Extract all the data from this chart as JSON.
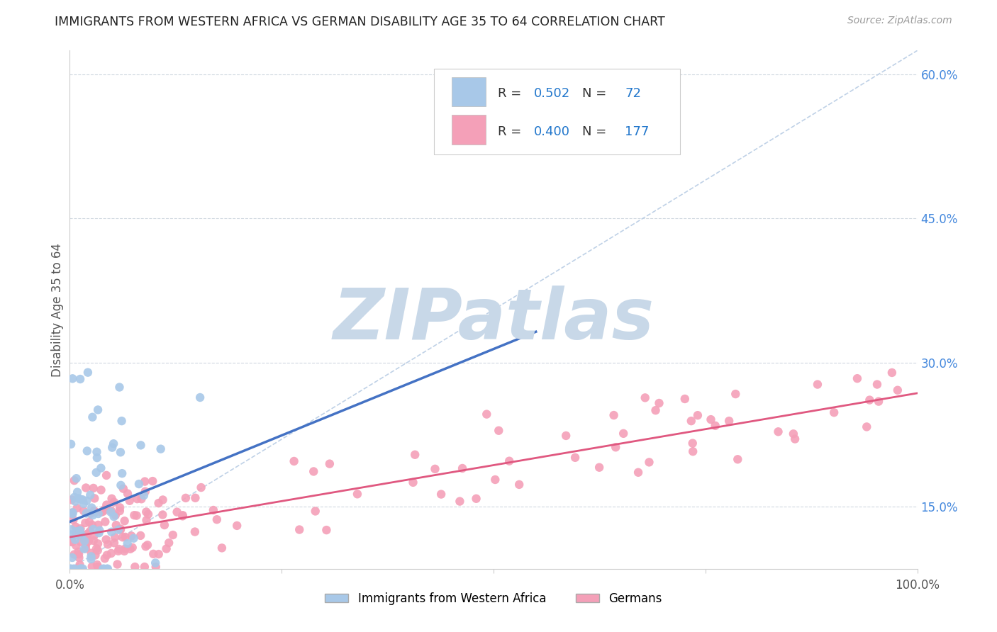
{
  "title": "IMMIGRANTS FROM WESTERN AFRICA VS GERMAN DISABILITY AGE 35 TO 64 CORRELATION CHART",
  "source": "Source: ZipAtlas.com",
  "ylabel": "Disability Age 35 to 64",
  "xlim": [
    0.0,
    1.0
  ],
  "ylim": [
    0.085,
    0.625
  ],
  "ytick_positions": [
    0.15,
    0.3,
    0.45,
    0.6
  ],
  "ytick_labels": [
    "15.0%",
    "30.0%",
    "45.0%",
    "60.0%"
  ],
  "blue_R": "0.502",
  "blue_N": "72",
  "pink_R": "0.400",
  "pink_N": "177",
  "blue_color": "#a8c8e8",
  "pink_color": "#f4a0b8",
  "blue_line_color": "#4472c4",
  "pink_line_color": "#e05880",
  "diagonal_line_color": "#b8cce4",
  "watermark_color": "#c8d8e8",
  "background_color": "#ffffff",
  "grid_color": "#d0d8e0",
  "blue_seed": 10,
  "pink_seed": 20,
  "n_blue": 72,
  "n_pink": 177,
  "blue_line_x1": 0.0,
  "blue_line_x2": 0.55,
  "blue_line_y1": 0.134,
  "blue_line_y2": 0.332,
  "pink_line_x1": 0.0,
  "pink_line_x2": 1.0,
  "pink_line_y1": 0.118,
  "pink_line_y2": 0.268
}
